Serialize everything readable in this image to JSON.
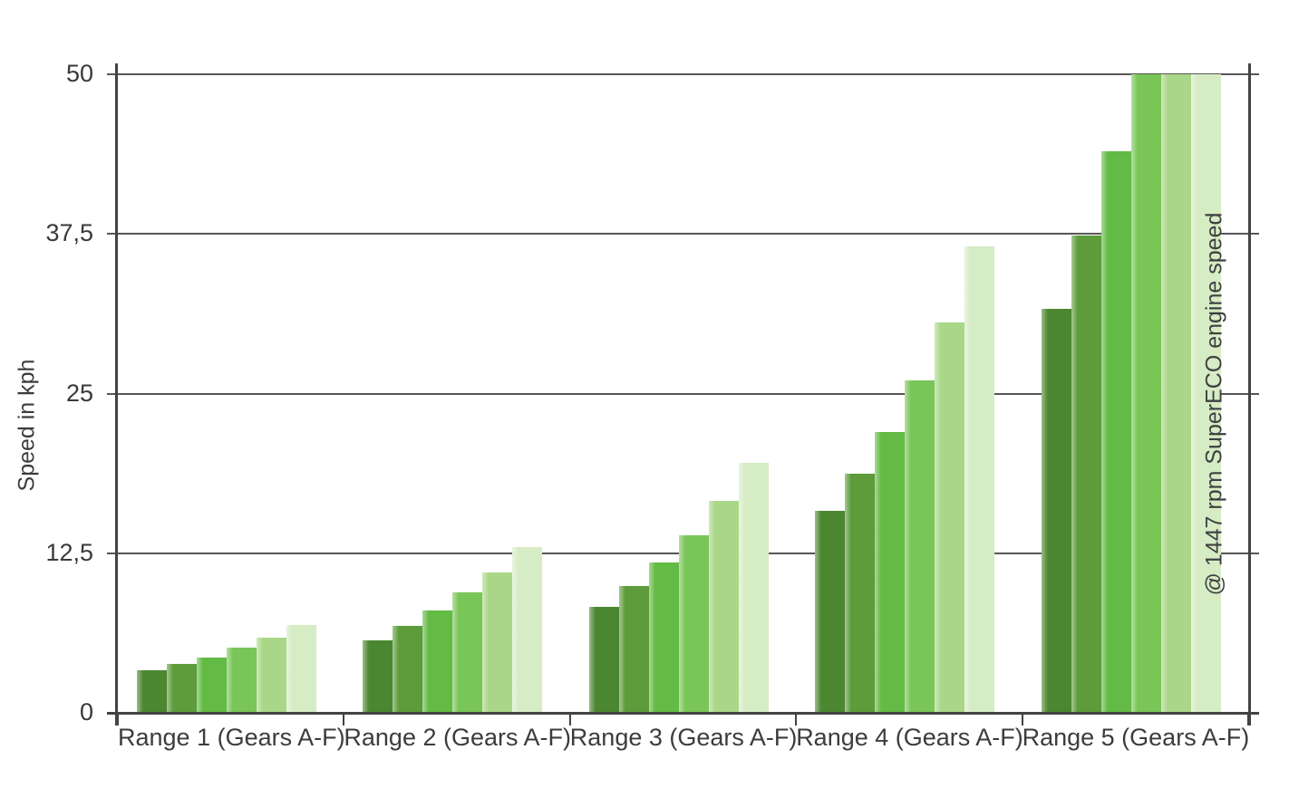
{
  "chart_data": {
    "type": "bar",
    "title": "",
    "ylabel": "Speed in kph",
    "xlabel": "",
    "ylim": [
      0,
      50
    ],
    "grid": "horizontal",
    "legend": "none (gears encoded by green shade, dark A to light F)",
    "annotation": "@ 1447 rpm SuperECO engine speed",
    "categories": [
      "Range 1 (Gears A-F)",
      "Range 2 (Gears A-F)",
      "Range 3 (Gears A-F)",
      "Range 4 (Gears A-F)",
      "Range 5 (Gears A-F)"
    ],
    "yticks": [
      {
        "value": 0,
        "label": "0"
      },
      {
        "value": 12.5,
        "label": "12,5"
      },
      {
        "value": 25,
        "label": "25"
      },
      {
        "value": 37.5,
        "label": "37,5"
      },
      {
        "value": 50,
        "label": "50"
      }
    ],
    "series": [
      {
        "name": "Gear A",
        "color": "#4b8630",
        "values": [
          3.3,
          5.7,
          8.3,
          15.8,
          31.6
        ]
      },
      {
        "name": "Gear B",
        "color": "#5d9b3b",
        "values": [
          3.8,
          6.8,
          9.9,
          18.7,
          37.4
        ]
      },
      {
        "name": "Gear C",
        "color": "#63ba45",
        "values": [
          4.3,
          8.0,
          11.8,
          22.0,
          44.0
        ]
      },
      {
        "name": "Gear D",
        "color": "#7ac558",
        "values": [
          5.1,
          9.4,
          13.9,
          26.0,
          50.0
        ]
      },
      {
        "name": "Gear E",
        "color": "#a9d787",
        "values": [
          5.9,
          11.0,
          16.6,
          30.6,
          50.0
        ]
      },
      {
        "name": "Gear F",
        "color": "#d6ecc4",
        "values": [
          6.9,
          13.0,
          19.6,
          36.5,
          50.0
        ]
      }
    ],
    "bars_clipped_at_ymax": "Range 5 gears D, E, F reach the 50 kph axis maximum",
    "colors": {
      "axis": "#434345",
      "gridline": "#565658",
      "text": "#3c3c3e",
      "background": "#ffffff"
    }
  }
}
